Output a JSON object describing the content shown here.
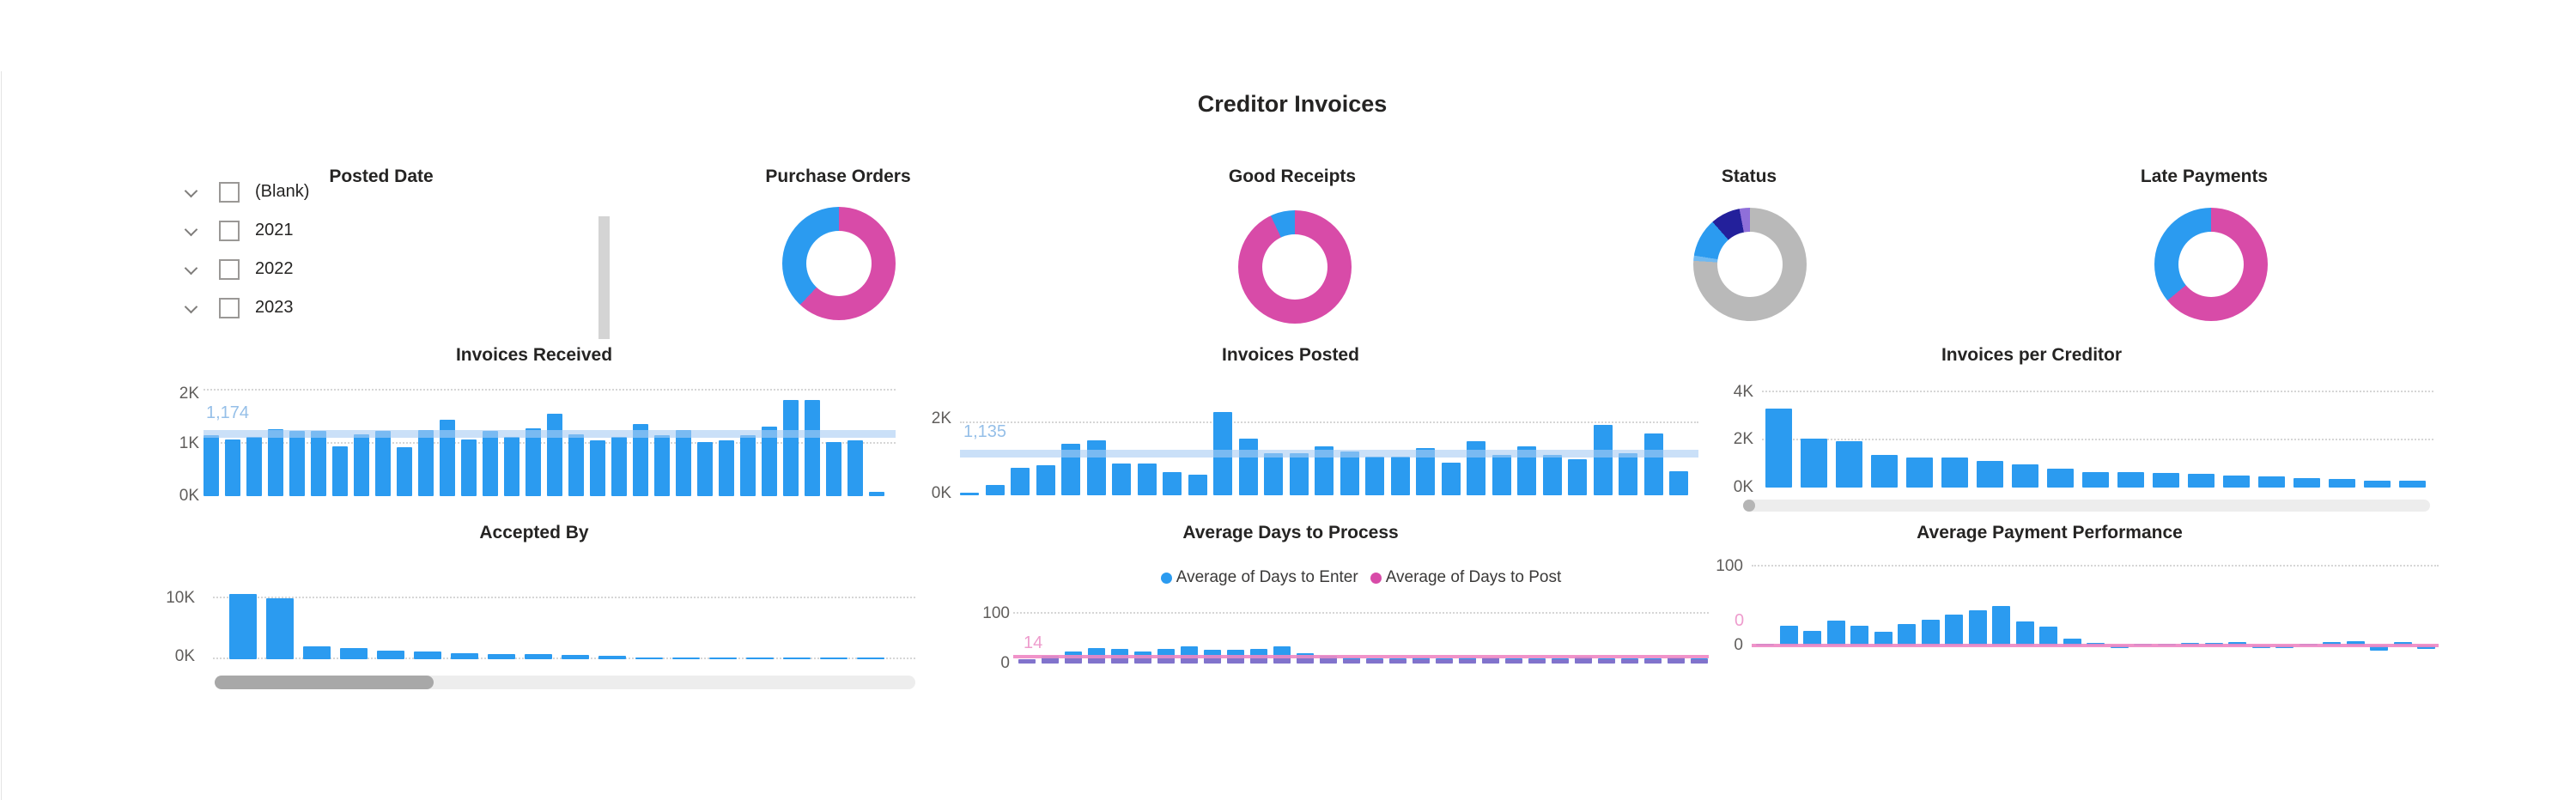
{
  "page": {
    "title": "Creditor Invoices"
  },
  "slicer": {
    "title": "Posted Date",
    "items": [
      {
        "label": "(Blank)",
        "checked": false
      },
      {
        "label": "2021",
        "checked": false
      },
      {
        "label": "2022",
        "checked": false
      },
      {
        "label": "2023",
        "checked": false
      }
    ]
  },
  "theme": {
    "bar_blue": "#2b9bf0",
    "magenta": "#d84ba8",
    "gray": "#b9b9b9",
    "navy": "#23209b",
    "purple": "#8f6fd9",
    "light_blue_slice": "#6fb9f2",
    "avg_band_blue": "#a9cdf3",
    "avg_line_pink": "#ee87c3",
    "axis_label": "#605e5c",
    "title_text": "#252423"
  },
  "chart_data": [
    {
      "type": "pie",
      "title": "Purchase Orders",
      "slices": [
        {
          "color": "#d84ba8",
          "value": 62
        },
        {
          "color": "#2b9bf0",
          "value": 38
        }
      ]
    },
    {
      "type": "pie",
      "title": "Good Receipts",
      "slices": [
        {
          "color": "#d84ba8",
          "value": 93
        },
        {
          "color": "#2b9bf0",
          "value": 7
        }
      ]
    },
    {
      "type": "pie",
      "title": "Status",
      "slices": [
        {
          "color": "#b9b9b9",
          "value": 76
        },
        {
          "color": "#6fb9f2",
          "value": 1.5
        },
        {
          "color": "#2b9bf0",
          "value": 11
        },
        {
          "color": "#23209b",
          "value": 8.5
        },
        {
          "color": "#8f6fd9",
          "value": 3
        }
      ]
    },
    {
      "type": "pie",
      "title": "Late Payments",
      "slices": [
        {
          "color": "#d84ba8",
          "value": 64
        },
        {
          "color": "#2b9bf0",
          "value": 36
        }
      ]
    },
    {
      "type": "bar",
      "title": "Invoices Received",
      "color": "#2b9bf0",
      "ticks": [
        "2K",
        "1K",
        "0K"
      ],
      "ylim": [
        0,
        2000
      ],
      "grid": [
        2000,
        1000
      ],
      "average": {
        "value": 1174,
        "label": "1,174",
        "color": "#a9cdf3"
      },
      "values": [
        1150,
        1080,
        1120,
        1270,
        1230,
        1230,
        950,
        1170,
        1230,
        930,
        1260,
        1450,
        1080,
        1230,
        1120,
        1280,
        1560,
        1170,
        1060,
        1130,
        1360,
        1160,
        1260,
        1030,
        1060,
        1160,
        1310,
        1820,
        1820,
        1030,
        1060,
        80
      ]
    },
    {
      "type": "bar",
      "title": "Invoices Posted",
      "color": "#2b9bf0",
      "ticks": [
        "2K",
        "0K"
      ],
      "ylim": [
        0,
        2000
      ],
      "grid": [
        2000
      ],
      "average": {
        "value": 1135,
        "label": "1,135",
        "color": "#a9cdf3"
      },
      "values": [
        60,
        280,
        760,
        840,
        1430,
        1520,
        880,
        880,
        640,
        560,
        2320,
        1560,
        1160,
        1160,
        1360,
        1210,
        1060,
        1060,
        1310,
        910,
        1510,
        1110,
        1360,
        1110,
        1010,
        1960,
        1160,
        1710,
        660
      ]
    },
    {
      "type": "bar",
      "title": "Invoices per Creditor",
      "color": "#2b9bf0",
      "ticks": [
        "4K",
        "2K",
        "0K"
      ],
      "ylim": [
        0,
        4000
      ],
      "grid": [
        4000,
        2000
      ],
      "values": [
        3320,
        2060,
        1960,
        1360,
        1260,
        1260,
        1110,
        960,
        810,
        660,
        660,
        610,
        560,
        510,
        460,
        410,
        360,
        290,
        280
      ]
    },
    {
      "type": "bar",
      "title": "Accepted By",
      "color": "#2b9bf0",
      "ticks": [
        "10K",
        "0K"
      ],
      "ylim": [
        0,
        10000
      ],
      "grid": [
        10000,
        0
      ],
      "values": [
        10700,
        10000,
        2100,
        1800,
        1400,
        1200,
        1000,
        900,
        800,
        650,
        550,
        250,
        200,
        170,
        150,
        130,
        120,
        100
      ]
    },
    {
      "type": "bar",
      "title": "Average Days to Process",
      "color": "#2b9bf0",
      "color2": "rgba(216,75,168,0.5)",
      "ticks": [
        "100",
        "0"
      ],
      "ylim": [
        0,
        100
      ],
      "grid": [
        100
      ],
      "series": [
        {
          "name": "Average of Days to Enter",
          "color": "#2b9bf0"
        },
        {
          "name": "Average of Days to Post",
          "color": "#d84ba8"
        }
      ],
      "average": {
        "value": 14,
        "label": "14",
        "color": "#ee87c3"
      },
      "values": [
        8,
        16,
        24,
        31,
        30,
        25,
        29,
        35,
        27,
        28,
        30,
        34,
        20,
        16,
        12,
        11,
        11,
        12,
        11,
        12,
        12,
        11,
        10,
        10,
        13,
        10,
        11,
        10,
        12,
        10
      ],
      "values2": [
        9,
        10,
        11,
        12,
        11,
        10,
        11,
        12,
        11,
        11,
        11,
        12,
        10,
        10,
        9,
        9,
        9,
        9,
        9,
        9,
        10,
        9,
        9,
        9,
        10,
        9,
        9,
        9,
        10,
        9
      ]
    },
    {
      "type": "bar",
      "title": "Average Payment Performance",
      "color": "#2b9bf0",
      "ticks": [
        "100",
        "0"
      ],
      "ylim": [
        0,
        100
      ],
      "grid": [
        100
      ],
      "average": {
        "value": 0,
        "label": "0",
        "color": "#ee87c3"
      },
      "values": [
        2,
        25,
        18,
        31,
        25,
        17,
        27,
        33,
        39,
        45,
        50,
        30,
        24,
        9,
        3,
        -3,
        2,
        2,
        3,
        3,
        4,
        -3,
        -3,
        2,
        4,
        5,
        -6,
        4,
        -4
      ]
    }
  ]
}
